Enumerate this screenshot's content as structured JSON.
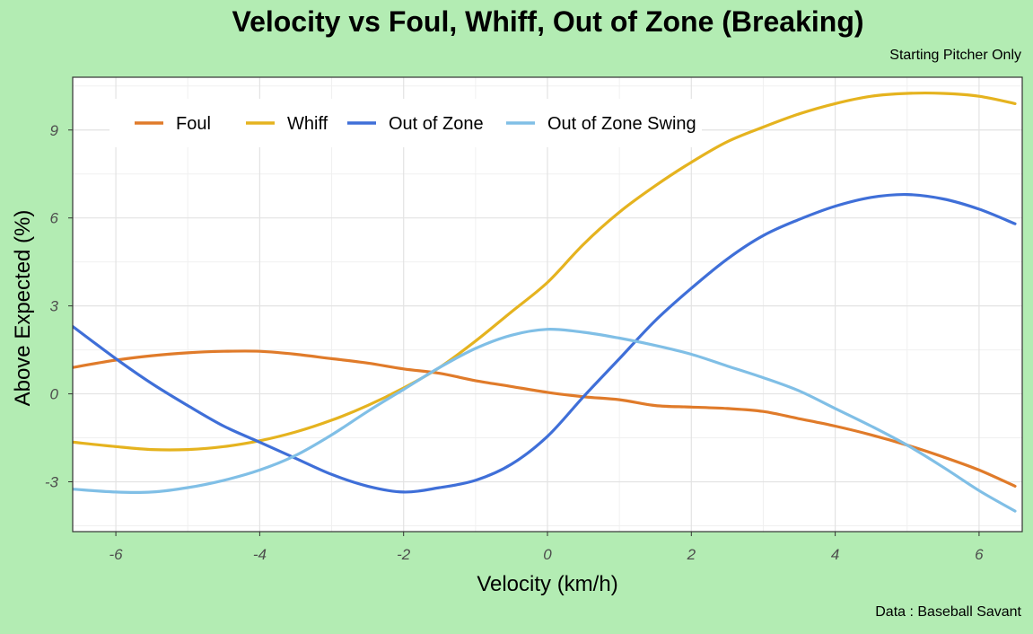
{
  "chart_data": {
    "type": "line",
    "title": "Velocity vs Foul, Whiff, Out of Zone (Breaking)",
    "subtitle": "Starting Pitcher Only",
    "caption": "Data : Baseball Savant",
    "xlabel": "Velocity (km/h)",
    "ylabel": "Above Expected (%)",
    "xlim": [
      -6.6,
      6.6
    ],
    "ylim": [
      -4.7,
      10.8
    ],
    "x_ticks": [
      -6,
      -4,
      -2,
      0,
      2,
      4,
      6
    ],
    "y_ticks": [
      -3,
      0,
      3,
      6,
      9
    ],
    "grid": true,
    "legend_position": "top-left",
    "series": [
      {
        "name": "Foul",
        "color": "#e07b2a",
        "points": [
          [
            -6.6,
            0.9
          ],
          [
            -6,
            1.15
          ],
          [
            -5.5,
            1.3
          ],
          [
            -5,
            1.4
          ],
          [
            -4.5,
            1.45
          ],
          [
            -4,
            1.45
          ],
          [
            -3.5,
            1.35
          ],
          [
            -3,
            1.2
          ],
          [
            -2.5,
            1.05
          ],
          [
            -2,
            0.85
          ],
          [
            -1.5,
            0.7
          ],
          [
            -1,
            0.45
          ],
          [
            -0.5,
            0.25
          ],
          [
            0,
            0.05
          ],
          [
            0.5,
            -0.1
          ],
          [
            1,
            -0.2
          ],
          [
            1.5,
            -0.4
          ],
          [
            2,
            -0.45
          ],
          [
            2.5,
            -0.5
          ],
          [
            3,
            -0.6
          ],
          [
            3.5,
            -0.85
          ],
          [
            4,
            -1.1
          ],
          [
            4.5,
            -1.4
          ],
          [
            5,
            -1.75
          ],
          [
            5.5,
            -2.15
          ],
          [
            6,
            -2.6
          ],
          [
            6.5,
            -3.15
          ]
        ]
      },
      {
        "name": "Whiff",
        "color": "#e5b31f",
        "points": [
          [
            -6.6,
            -1.65
          ],
          [
            -6,
            -1.8
          ],
          [
            -5.5,
            -1.9
          ],
          [
            -5,
            -1.9
          ],
          [
            -4.5,
            -1.8
          ],
          [
            -4,
            -1.6
          ],
          [
            -3.5,
            -1.3
          ],
          [
            -3,
            -0.9
          ],
          [
            -2.5,
            -0.4
          ],
          [
            -2,
            0.2
          ],
          [
            -1.5,
            0.9
          ],
          [
            -1,
            1.8
          ],
          [
            -0.5,
            2.8
          ],
          [
            0,
            3.8
          ],
          [
            0.5,
            5.1
          ],
          [
            1,
            6.2
          ],
          [
            1.5,
            7.1
          ],
          [
            2,
            7.9
          ],
          [
            2.5,
            8.6
          ],
          [
            3,
            9.1
          ],
          [
            3.5,
            9.55
          ],
          [
            4,
            9.9
          ],
          [
            4.5,
            10.15
          ],
          [
            5,
            10.25
          ],
          [
            5.5,
            10.25
          ],
          [
            6,
            10.15
          ],
          [
            6.5,
            9.9
          ]
        ]
      },
      {
        "name": "Out of Zone",
        "color": "#3f6fd8",
        "points": [
          [
            -6.6,
            2.3
          ],
          [
            -6,
            1.2
          ],
          [
            -5.5,
            0.35
          ],
          [
            -5,
            -0.4
          ],
          [
            -4.5,
            -1.1
          ],
          [
            -4,
            -1.65
          ],
          [
            -3.5,
            -2.2
          ],
          [
            -3,
            -2.75
          ],
          [
            -2.5,
            -3.15
          ],
          [
            -2,
            -3.35
          ],
          [
            -1.5,
            -3.2
          ],
          [
            -1,
            -2.95
          ],
          [
            -0.5,
            -2.4
          ],
          [
            0,
            -1.45
          ],
          [
            0.5,
            -0.1
          ],
          [
            1,
            1.2
          ],
          [
            1.5,
            2.5
          ],
          [
            2,
            3.6
          ],
          [
            2.5,
            4.6
          ],
          [
            3,
            5.4
          ],
          [
            3.5,
            5.95
          ],
          [
            4,
            6.4
          ],
          [
            4.5,
            6.7
          ],
          [
            5,
            6.8
          ],
          [
            5.5,
            6.65
          ],
          [
            6,
            6.3
          ],
          [
            6.5,
            5.8
          ]
        ]
      },
      {
        "name": "Out of Zone Swing",
        "color": "#80bfe6",
        "points": [
          [
            -6.6,
            -3.25
          ],
          [
            -6,
            -3.35
          ],
          [
            -5.5,
            -3.35
          ],
          [
            -5,
            -3.2
          ],
          [
            -4.5,
            -2.95
          ],
          [
            -4,
            -2.6
          ],
          [
            -3.5,
            -2.1
          ],
          [
            -3,
            -1.4
          ],
          [
            -2.5,
            -0.6
          ],
          [
            -2,
            0.15
          ],
          [
            -1.5,
            0.9
          ],
          [
            -1,
            1.55
          ],
          [
            -0.5,
            2.0
          ],
          [
            0,
            2.2
          ],
          [
            0.5,
            2.1
          ],
          [
            1,
            1.9
          ],
          [
            1.5,
            1.65
          ],
          [
            2,
            1.35
          ],
          [
            2.5,
            0.95
          ],
          [
            3,
            0.55
          ],
          [
            3.5,
            0.1
          ],
          [
            4,
            -0.5
          ],
          [
            4.5,
            -1.1
          ],
          [
            5,
            -1.75
          ],
          [
            5.5,
            -2.5
          ],
          [
            6,
            -3.3
          ],
          [
            6.5,
            -4.0
          ]
        ]
      }
    ]
  }
}
